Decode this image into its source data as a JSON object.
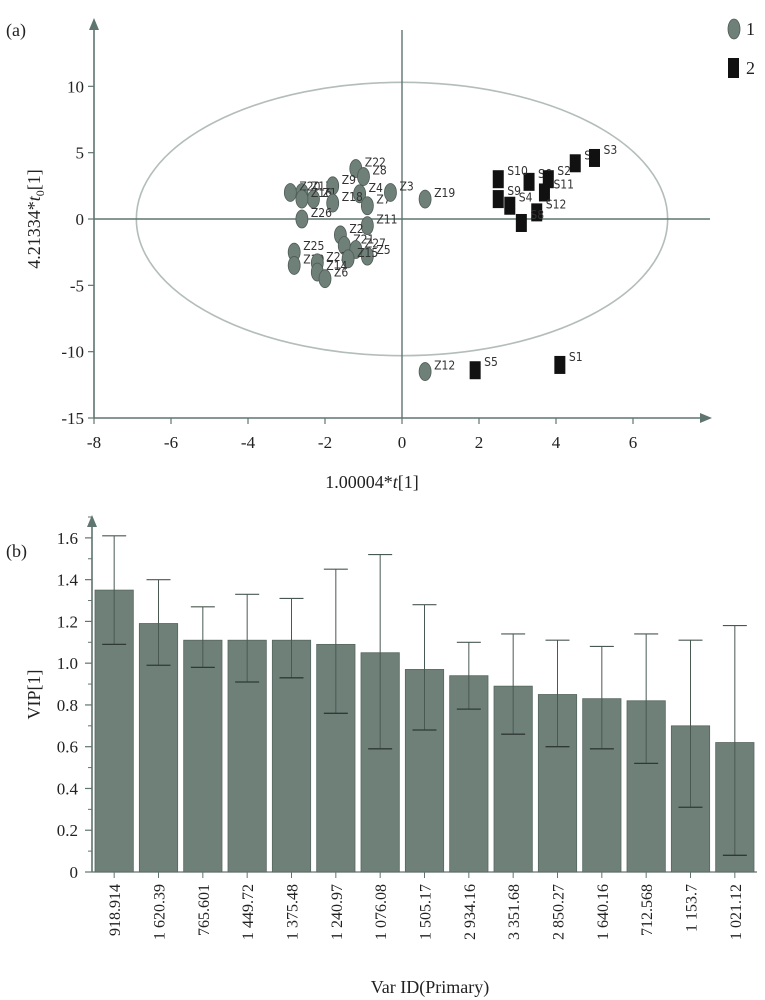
{
  "chart_data": [
    {
      "type": "scatter",
      "panel_label": "(a)",
      "xlabel_prefix": "1.00004*",
      "xlabel_var": "t",
      "xlabel_suffix": "[1]",
      "ylabel_prefix": "4.21334*",
      "ylabel_var": "t",
      "ylabel_sub": "0",
      "ylabel_suffix": "[1]",
      "xlim": [
        -8,
        8
      ],
      "ylim": [
        -15,
        15
      ],
      "xticks": [
        "-8",
        "-6",
        "-4",
        "-2",
        "0",
        "2",
        "4",
        "6"
      ],
      "yticks": [
        "-15",
        "-10",
        "-5",
        "0",
        "5",
        "10"
      ],
      "ellipse": {
        "cx": 0,
        "cy": 0,
        "rx": 6.9,
        "ry": 10.3
      },
      "legend": [
        {
          "label": "1",
          "marker": "circle"
        },
        {
          "label": "2",
          "marker": "square"
        }
      ],
      "series": [
        {
          "marker": "circle",
          "color": "#6f8079",
          "points": [
            {
              "label": "Z22",
              "x": -1.2,
              "y": 3.8
            },
            {
              "label": "Z8",
              "x": -1.0,
              "y": 3.2
            },
            {
              "label": "Z4",
              "x": -1.1,
              "y": 1.9
            },
            {
              "label": "Z17",
              "x": -2.6,
              "y": 2.0
            },
            {
              "label": "Z9",
              "x": -1.8,
              "y": 2.5
            },
            {
              "label": "Z1",
              "x": -2.3,
              "y": 1.5
            },
            {
              "label": "Z7",
              "x": -0.9,
              "y": 1.0
            },
            {
              "label": "Z3",
              "x": -0.3,
              "y": 2.0
            },
            {
              "label": "Z19",
              "x": 0.6,
              "y": 1.5
            },
            {
              "label": "Z20",
              "x": -2.9,
              "y": 2.0
            },
            {
              "label": "Z16",
              "x": -2.6,
              "y": 1.5
            },
            {
              "label": "Z18",
              "x": -1.8,
              "y": 1.2
            },
            {
              "label": "Z26",
              "x": -2.6,
              "y": 0.0
            },
            {
              "label": "Z11",
              "x": -0.9,
              "y": -0.5
            },
            {
              "label": "Z2",
              "x": -1.6,
              "y": -1.2
            },
            {
              "label": "Z21",
              "x": -1.5,
              "y": -2.0
            },
            {
              "label": "Z27",
              "x": -1.2,
              "y": -2.3
            },
            {
              "label": "Z5",
              "x": -0.9,
              "y": -2.8
            },
            {
              "label": "Z25",
              "x": -2.8,
              "y": -2.5
            },
            {
              "label": "Z10",
              "x": -2.8,
              "y": -3.5
            },
            {
              "label": "Z23",
              "x": -2.2,
              "y": -3.3
            },
            {
              "label": "Z15",
              "x": -1.4,
              "y": -3.0
            },
            {
              "label": "Z14",
              "x": -2.2,
              "y": -4.0
            },
            {
              "label": "Z6",
              "x": -2.0,
              "y": -4.5
            },
            {
              "label": "Z12",
              "x": 0.6,
              "y": -11.5
            }
          ]
        },
        {
          "marker": "square",
          "color": "#111111",
          "points": [
            {
              "label": "S7",
              "x": 4.5,
              "y": 4.2
            },
            {
              "label": "S3",
              "x": 5.0,
              "y": 4.6
            },
            {
              "label": "S6",
              "x": 3.3,
              "y": 2.8
            },
            {
              "label": "S2",
              "x": 3.8,
              "y": 3.0
            },
            {
              "label": "S10",
              "x": 2.5,
              "y": 3.0
            },
            {
              "label": "S11",
              "x": 3.7,
              "y": 2.0
            },
            {
              "label": "S9",
              "x": 2.5,
              "y": 1.5
            },
            {
              "label": "S4",
              "x": 2.8,
              "y": 1.0
            },
            {
              "label": "S12",
              "x": 3.5,
              "y": 0.5
            },
            {
              "label": "S8",
              "x": 3.1,
              "y": -0.3
            },
            {
              "label": "S5",
              "x": 1.9,
              "y": -11.4
            },
            {
              "label": "S1",
              "x": 4.1,
              "y": -11.0
            }
          ]
        }
      ]
    },
    {
      "type": "bar",
      "panel_label": "(b)",
      "xlabel": "Var ID(Primary)",
      "ylabel": "VIP[1]",
      "ylim": [
        0,
        1.7
      ],
      "yticks": [
        "0",
        "0.2",
        "0.4",
        "0.6",
        "0.8",
        "1.0",
        "1.2",
        "1.4",
        "1.6"
      ],
      "categories": [
        "918.914",
        "1 620.39",
        "765.601",
        "1 449.72",
        "1 375.48",
        "1 240.97",
        "1 076.08",
        "1 505.17",
        "2 934.16",
        "3 351.68",
        "2 850.27",
        "1 640.16",
        "712.568",
        "1 153.7",
        "1 021.12"
      ],
      "values": [
        1.35,
        1.19,
        1.11,
        1.11,
        1.11,
        1.09,
        1.05,
        0.97,
        0.94,
        0.89,
        0.85,
        0.83,
        0.82,
        0.7,
        0.62
      ],
      "error_low": [
        1.09,
        0.99,
        0.98,
        0.91,
        0.93,
        0.76,
        0.59,
        0.68,
        0.78,
        0.66,
        0.6,
        0.59,
        0.52,
        0.31,
        0.08
      ],
      "error_high": [
        1.61,
        1.4,
        1.27,
        1.33,
        1.31,
        1.45,
        1.52,
        1.28,
        1.1,
        1.14,
        1.11,
        1.08,
        1.14,
        1.11,
        1.18
      ],
      "bar_color": "#6f8079"
    }
  ]
}
